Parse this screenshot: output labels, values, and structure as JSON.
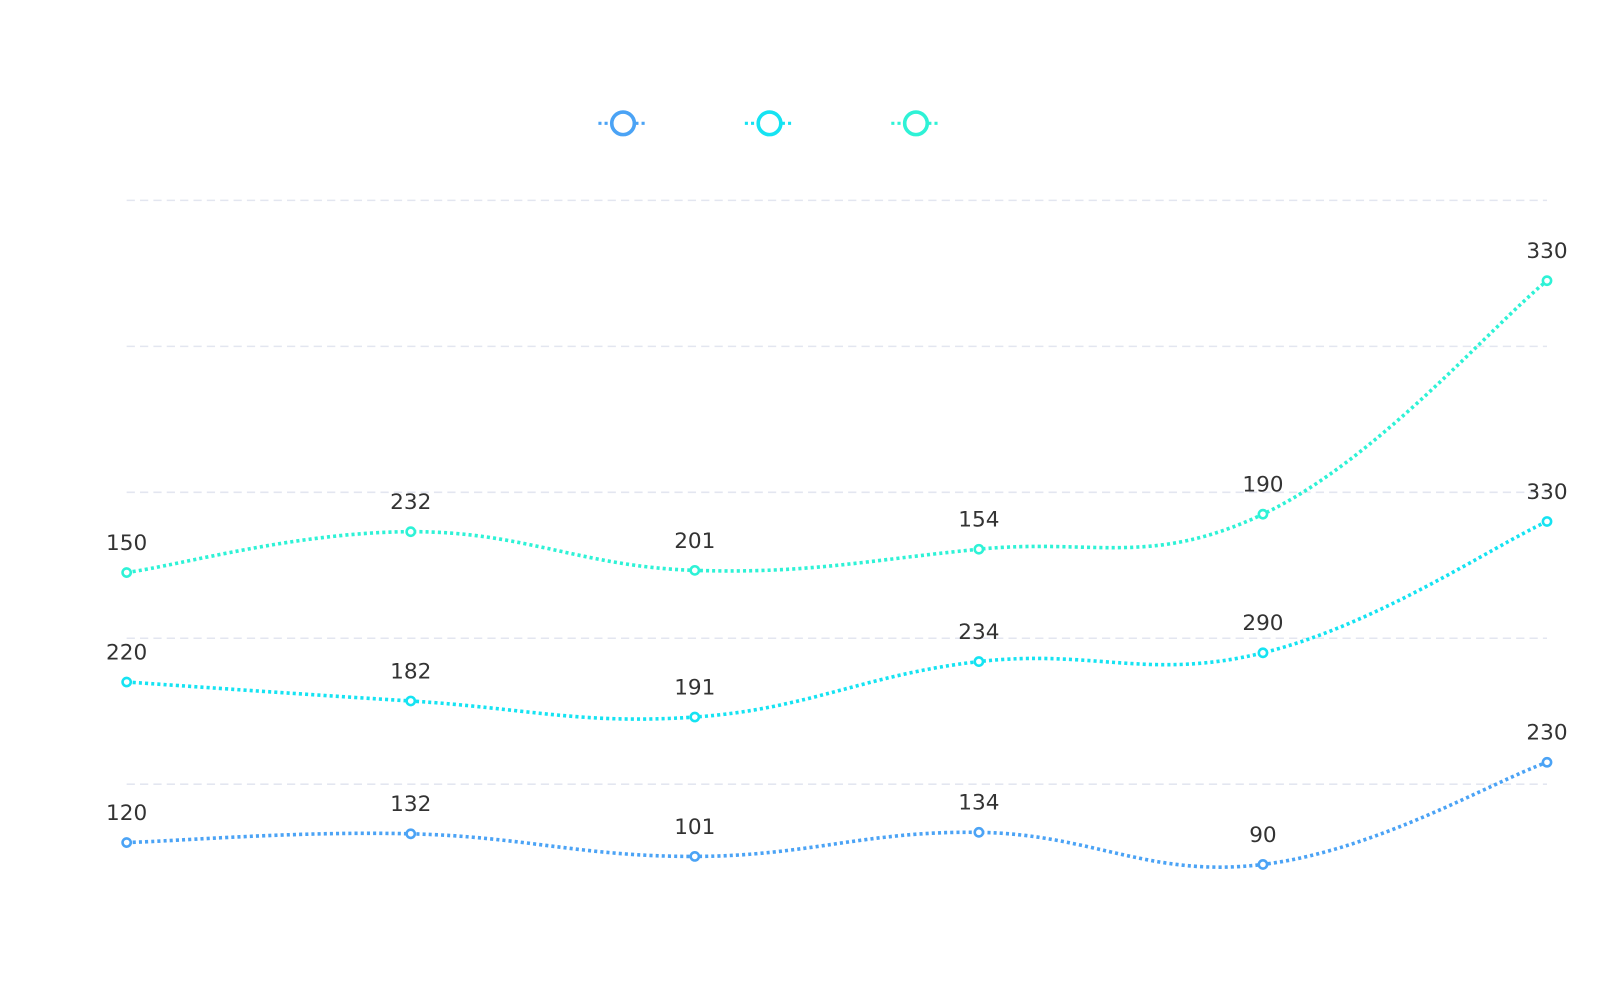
{
  "chart_data": {
    "type": "line",
    "stacked": true,
    "smooth": true,
    "categories": [
      null,
      null,
      null,
      null,
      null,
      null
    ],
    "series": [
      {
        "color": "#4ba3f5",
        "values": [
          120,
          132,
          101,
          134,
          90,
          230
        ]
      },
      {
        "color": "#15e3f2",
        "values": [
          220,
          182,
          191,
          234,
          290,
          330
        ]
      },
      {
        "color": "#2ef2d6",
        "values": [
          150,
          232,
          201,
          154,
          190,
          330
        ]
      }
    ],
    "ylim": [
      0,
      1000
    ],
    "yticks": [
      200,
      400,
      600,
      800,
      1000
    ],
    "grid": true
  }
}
